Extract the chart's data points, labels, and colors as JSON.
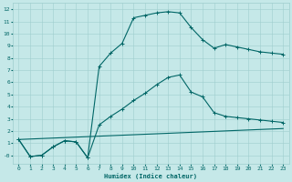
{
  "xlabel": "Humidex (Indice chaleur)",
  "xlim": [
    -0.5,
    23.5
  ],
  "ylim": [
    -0.7,
    12.5
  ],
  "xticks": [
    0,
    1,
    2,
    3,
    4,
    5,
    6,
    7,
    8,
    9,
    10,
    11,
    12,
    13,
    14,
    15,
    16,
    17,
    18,
    19,
    20,
    21,
    22,
    23
  ],
  "yticks": [
    0,
    1,
    2,
    3,
    4,
    5,
    6,
    7,
    8,
    9,
    10,
    11,
    12
  ],
  "bg_color": "#c5e8e8",
  "line_color": "#006666",
  "grid_color": "#9ecece",
  "curve1_x": [
    0,
    1,
    2,
    3,
    4,
    5,
    6,
    7,
    8,
    9,
    10,
    11,
    12,
    13,
    14,
    15,
    16,
    17,
    18,
    19,
    20,
    21,
    22,
    23
  ],
  "curve1_y": [
    1.3,
    -0.1,
    0.0,
    0.7,
    1.2,
    1.1,
    -0.2,
    7.3,
    8.4,
    9.2,
    11.3,
    11.5,
    11.7,
    11.8,
    11.7,
    10.5,
    9.5,
    8.8,
    9.1,
    8.9,
    8.7,
    8.5,
    8.4,
    8.3
  ],
  "curve2_x": [
    0,
    1,
    2,
    3,
    4,
    5,
    6,
    7,
    8,
    9,
    10,
    11,
    12,
    13,
    14,
    15,
    16,
    17,
    18,
    19,
    20,
    21,
    22,
    23
  ],
  "curve2_y": [
    1.3,
    -0.1,
    0.0,
    0.7,
    1.2,
    1.1,
    -0.2,
    2.5,
    3.2,
    3.8,
    4.5,
    5.1,
    5.8,
    6.4,
    6.6,
    5.2,
    4.8,
    3.5,
    3.2,
    3.1,
    3.0,
    2.9,
    2.8,
    2.7
  ],
  "curve3_x": [
    0,
    23
  ],
  "curve3_y": [
    1.3,
    2.2
  ]
}
